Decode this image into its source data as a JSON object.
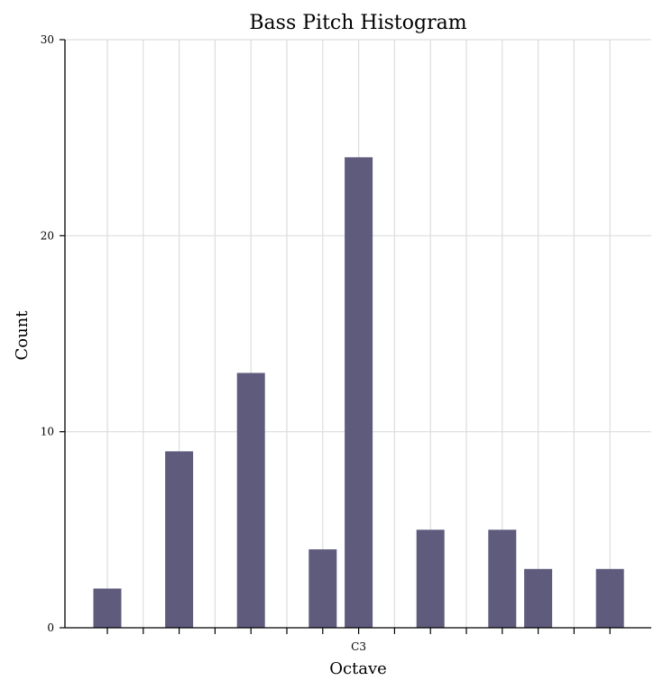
{
  "chart_data": {
    "type": "bar",
    "title": "Bass Pitch Histogram",
    "xlabel": "Octave",
    "ylabel": "Count",
    "ylim": [
      0,
      30
    ],
    "yticks": [
      0,
      10,
      20,
      30
    ],
    "x_tick_count": 15,
    "x_tick_labels": [
      "",
      "",
      "",
      "",
      "",
      "",
      "",
      "C3",
      "",
      "",
      "",
      "",
      "",
      "",
      ""
    ],
    "bars": [
      {
        "x": 0,
        "value": 2
      },
      {
        "x": 2,
        "value": 9
      },
      {
        "x": 4,
        "value": 13
      },
      {
        "x": 6,
        "value": 4
      },
      {
        "x": 7,
        "value": 24
      },
      {
        "x": 9,
        "value": 5
      },
      {
        "x": 11,
        "value": 5
      },
      {
        "x": 12,
        "value": 3
      },
      {
        "x": 14,
        "value": 3
      }
    ],
    "bar_color": "#5e5b7d",
    "grid": true,
    "grid_color": "#dddddd"
  }
}
